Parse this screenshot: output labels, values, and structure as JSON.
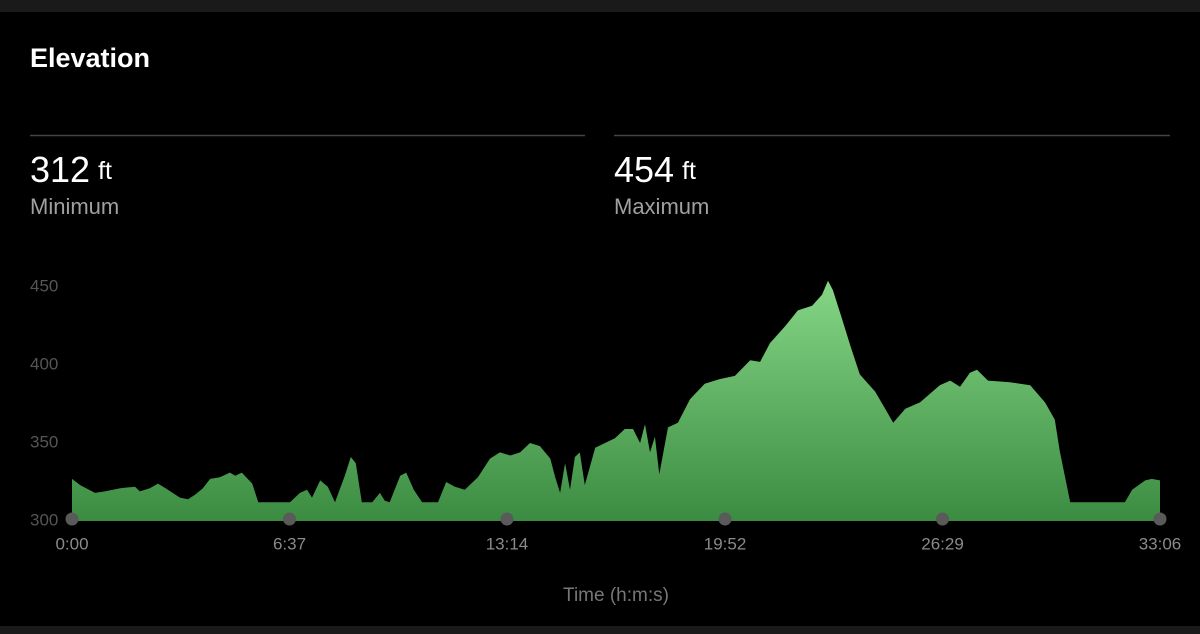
{
  "header": {
    "title": "Elevation"
  },
  "stats": [
    {
      "value": 312,
      "unit": "ft",
      "label": "Minimum"
    },
    {
      "value": 454,
      "unit": "ft",
      "label": "Maximum"
    }
  ],
  "chart_data": {
    "type": "area",
    "x_label": "Time (h:m:s)",
    "x": [
      0,
      15,
      42,
      60,
      88,
      115,
      124,
      142,
      157,
      175,
      197,
      212,
      225,
      239,
      252,
      270,
      288,
      298,
      310,
      329,
      340,
      361,
      398,
      416,
      429,
      438,
      453,
      467,
      480,
      498,
      509,
      518,
      529,
      548,
      562,
      571,
      580,
      599,
      610,
      624,
      639,
      668,
      683,
      699,
      717,
      741,
      763,
      781,
      800,
      818,
      836,
      854,
      873,
      882,
      891,
      900,
      909,
      918,
      927,
      936,
      955,
      973,
      991,
      1009,
      1024,
      1037,
      1046,
      1055,
      1064,
      1072,
      1088,
      1106,
      1128,
      1155,
      1183,
      1210,
      1238,
      1256,
      1274,
      1302,
      1325,
      1351,
      1369,
      1380,
      1389,
      1406,
      1422,
      1438,
      1466,
      1499,
      1521,
      1548,
      1584,
      1603,
      1621,
      1639,
      1652,
      1672,
      1712,
      1749,
      1776,
      1794,
      1803,
      1822,
      1922,
      1935,
      1959,
      1971,
      1986
    ],
    "values": [
      327,
      323,
      318,
      319,
      321,
      322,
      319,
      321,
      324,
      320,
      315,
      314,
      317,
      321,
      327,
      328,
      331,
      329,
      331,
      324,
      312,
      312,
      312,
      318,
      320,
      315,
      326,
      322,
      312,
      329,
      341,
      337,
      312,
      312,
      318,
      313,
      312,
      329,
      331,
      320,
      312,
      312,
      325,
      322,
      320,
      328,
      340,
      344,
      342,
      344,
      350,
      348,
      340,
      328,
      318,
      337,
      320,
      341,
      344,
      323,
      347,
      350,
      353,
      359,
      359,
      350,
      362,
      344,
      354,
      330,
      360,
      363,
      378,
      388,
      391,
      393,
      403,
      402,
      414,
      425,
      435,
      438,
      445,
      454,
      448,
      429,
      411,
      394,
      383,
      363,
      372,
      376,
      387,
      390,
      386,
      395,
      397,
      390,
      389,
      387,
      376,
      365,
      345,
      312,
      312,
      320,
      326,
      327,
      326
    ],
    "color": [
      "#86d686",
      "#3b8c42"
    ],
    "xlim": [
      0,
      1986
    ],
    "xticks": [
      {
        "value": 0,
        "label": "0:00"
      },
      {
        "value": 397,
        "label": "6:37"
      },
      {
        "value": 794,
        "label": "13:14"
      },
      {
        "value": 1192,
        "label": "19:52"
      },
      {
        "value": 1589,
        "label": "26:29"
      },
      {
        "value": 1986,
        "label": "33:06"
      }
    ],
    "ylim": [
      300,
      460
    ],
    "yticks": [
      300,
      350,
      400,
      450
    ]
  }
}
